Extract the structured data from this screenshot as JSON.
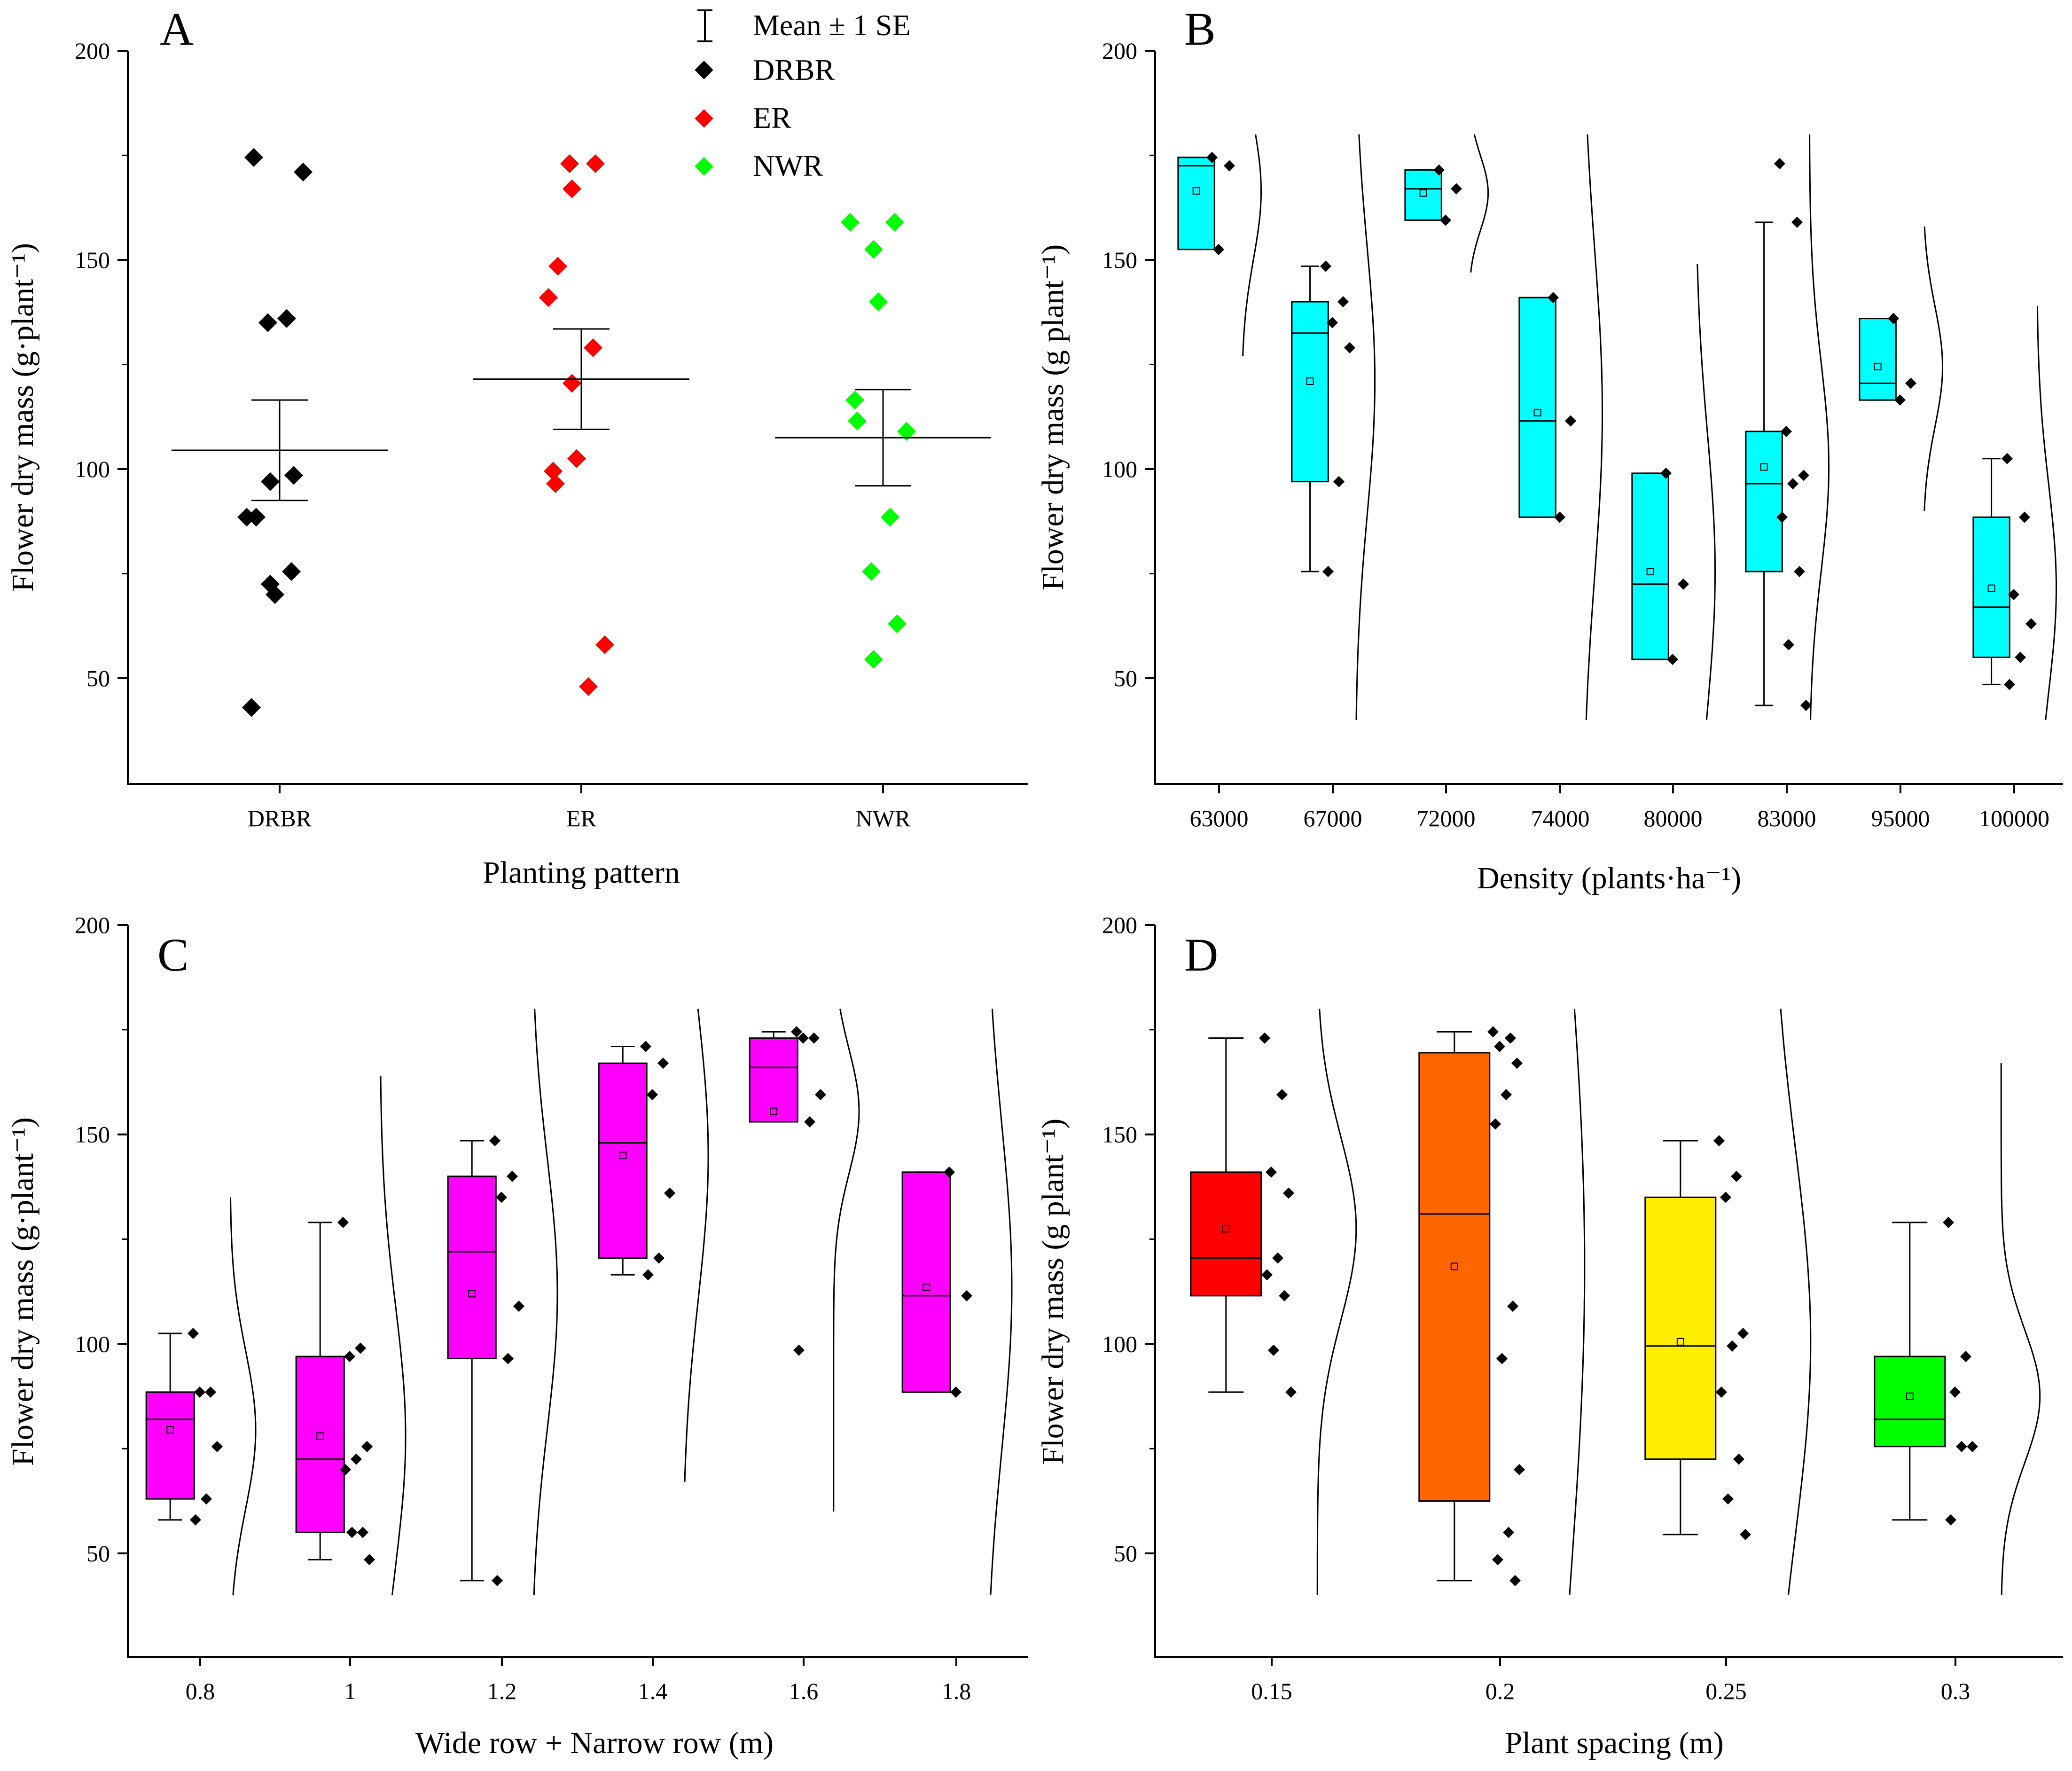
{
  "figure": {
    "description_panels": [
      "A",
      "B",
      "C",
      "D"
    ]
  },
  "legend": {
    "items": [
      {
        "label": "Mean ± 1 SE",
        "kind": "errorbar"
      },
      {
        "label": "DRBR",
        "kind": "marker",
        "color": "#000000"
      },
      {
        "label": "ER",
        "kind": "marker",
        "color": "#ff0000"
      },
      {
        "label": "NWR",
        "kind": "marker",
        "color": "#00ff00"
      }
    ]
  },
  "chart_data": [
    {
      "panel": "A",
      "type": "scatter",
      "title": "",
      "xlabel": "Planting pattern",
      "ylabel": "Flower dry mass (g·plant⁻¹)",
      "ylim": [
        25,
        200
      ],
      "yticks": [
        50,
        100,
        150,
        200
      ],
      "categories": [
        "DRBR",
        "ER",
        "NWR"
      ],
      "series": [
        {
          "name": "DRBR",
          "color": "#000000",
          "values": [
            43,
            70,
            72.5,
            75.5,
            88.5,
            88.5,
            97,
            98.5,
            135,
            136,
            171,
            174.5
          ],
          "mean": 104.5,
          "se": 12
        },
        {
          "name": "ER",
          "color": "#ff0000",
          "values": [
            48,
            58,
            96.5,
            99.5,
            102.5,
            120.5,
            129,
            141,
            148.5,
            167,
            173,
            173
          ],
          "mean": 121.5,
          "se": 12
        },
        {
          "name": "NWR",
          "color": "#00ff00",
          "values": [
            54.5,
            63,
            75.5,
            88.5,
            109,
            111.5,
            116.5,
            140,
            152.5,
            159,
            159
          ],
          "mean": 107.5,
          "se": 11.5
        }
      ]
    },
    {
      "panel": "B",
      "type": "box",
      "title": "",
      "xlabel": "Density (plants·ha⁻¹)",
      "ylabel": "Flower dry mass (g plant⁻¹)",
      "ylim": [
        25,
        200
      ],
      "yticks": [
        50,
        100,
        150,
        200
      ],
      "color": "#00ffff",
      "categories": [
        "63000",
        "67000",
        "72000",
        "74000",
        "80000",
        "83000",
        "95000",
        "100000"
      ],
      "boxes": [
        {
          "min": 152.5,
          "q1": 152.5,
          "median": 172.5,
          "q3": 174.5,
          "max": 174.5,
          "mean": 166.5,
          "points": [
            174.5,
            172.5,
            152.5
          ]
        },
        {
          "min": 75.5,
          "q1": 97,
          "median": 132.5,
          "q3": 140,
          "max": 148.5,
          "mean": 121,
          "points": [
            148.5,
            140,
            135,
            129,
            97,
            75.5
          ]
        },
        {
          "min": 159.5,
          "q1": 159.5,
          "median": 167,
          "q3": 171.5,
          "max": 171.5,
          "mean": 166,
          "points": [
            171.5,
            167,
            159.5
          ]
        },
        {
          "min": 88.5,
          "q1": 88.5,
          "median": 111.5,
          "q3": 141,
          "max": 141,
          "mean": 113.5,
          "points": [
            141,
            111.5,
            88.5
          ]
        },
        {
          "min": 54.5,
          "q1": 54.5,
          "median": 72.5,
          "q3": 99,
          "max": 99,
          "mean": 75.5,
          "points": [
            99,
            72.5,
            54.5
          ]
        },
        {
          "min": 43.5,
          "q1": 75.5,
          "median": 96.5,
          "q3": 109,
          "max": 159,
          "mean": 100.5,
          "points": [
            173,
            159,
            109,
            98.5,
            96.5,
            88.5,
            75.5,
            58,
            43.5
          ]
        },
        {
          "min": 116.5,
          "q1": 116.5,
          "median": 120.5,
          "q3": 136,
          "max": 136,
          "mean": 124.5,
          "points": [
            136,
            120.5,
            116.5
          ]
        },
        {
          "min": 48.5,
          "q1": 55,
          "median": 67,
          "q3": 88.5,
          "max": 102.5,
          "mean": 71.5,
          "points": [
            102.5,
            88.5,
            70,
            63,
            55,
            48.5
          ]
        }
      ],
      "curve_range": [
        [
          127,
          180
        ],
        [
          40,
          180
        ],
        [
          147,
          180
        ],
        [
          40,
          180
        ],
        [
          40,
          149
        ],
        [
          40,
          180
        ],
        [
          90,
          158
        ],
        [
          40,
          139
        ]
      ]
    },
    {
      "panel": "C",
      "type": "box",
      "title": "",
      "xlabel": "Wide row + Narrow row (m)",
      "ylabel": "Flower dry mass (g·plant⁻¹)",
      "ylim": [
        25,
        200
      ],
      "yticks": [
        50,
        100,
        150,
        200
      ],
      "color": "#ff00ff",
      "categories": [
        "0.8",
        "1",
        "1.2",
        "1.4",
        "1.6",
        "1.8"
      ],
      "boxes": [
        {
          "min": 58,
          "q1": 63,
          "median": 82,
          "q3": 88.5,
          "max": 102.5,
          "mean": 79.5,
          "points": [
            102.5,
            88.5,
            88.5,
            75.5,
            63,
            58
          ]
        },
        {
          "min": 48.5,
          "q1": 55,
          "median": 72.5,
          "q3": 97,
          "max": 129,
          "mean": 78,
          "points": [
            129,
            99,
            97,
            75.5,
            72.5,
            70,
            55,
            55,
            48.5
          ]
        },
        {
          "min": 43.5,
          "q1": 96.5,
          "median": 122,
          "q3": 140,
          "max": 148.5,
          "mean": 112,
          "points": [
            148.5,
            140,
            135,
            109,
            96.5,
            43.5
          ]
        },
        {
          "min": 116.5,
          "q1": 120.5,
          "median": 148,
          "q3": 167,
          "max": 171,
          "mean": 145,
          "points": [
            171,
            167,
            159.5,
            136,
            120.5,
            116.5
          ]
        },
        {
          "min": 153,
          "q1": 153,
          "median": 166,
          "q3": 173,
          "max": 174.5,
          "mean": 155.5,
          "points": [
            174.5,
            173,
            173,
            159.5,
            153,
            98.5
          ]
        },
        {
          "min": 88.5,
          "q1": 88.5,
          "median": 111.5,
          "q3": 141,
          "max": 141,
          "mean": 113.5,
          "points": [
            141,
            111.5,
            88.5
          ]
        }
      ],
      "curve_range": [
        [
          40,
          135
        ],
        [
          40,
          164
        ],
        [
          40,
          180
        ],
        [
          67,
          180
        ],
        [
          60,
          180
        ],
        [
          40,
          180
        ]
      ]
    },
    {
      "panel": "D",
      "type": "box",
      "title": "",
      "xlabel": "Plant spacing (m)",
      "ylabel": "Flower dry mass (g plant⁻¹)",
      "ylim": [
        25,
        200
      ],
      "yticks": [
        50,
        100,
        150,
        200
      ],
      "categories": [
        "0.15",
        "0.2",
        "0.25",
        "0.3"
      ],
      "boxes": [
        {
          "color": "#ff0000",
          "min": 88.5,
          "q1": 111.5,
          "median": 120.5,
          "q3": 141,
          "max": 173,
          "mean": 127.5,
          "points": [
            173,
            159.5,
            141,
            136,
            120.5,
            116.5,
            111.5,
            98.5,
            88.5
          ]
        },
        {
          "color": "#ff6600",
          "min": 43.5,
          "q1": 62.5,
          "median": 131,
          "q3": 169.5,
          "max": 174.5,
          "mean": 118.5,
          "points": [
            174.5,
            173,
            171,
            167,
            159.5,
            152.5,
            109,
            96.5,
            70,
            55,
            48.5,
            43.5
          ]
        },
        {
          "color": "#ffee00",
          "min": 54.5,
          "q1": 72.5,
          "median": 99.5,
          "q3": 135,
          "max": 148.5,
          "mean": 100.5,
          "points": [
            148.5,
            140,
            135,
            102.5,
            99.5,
            88.5,
            72.5,
            63,
            54.5
          ]
        },
        {
          "color": "#00ff00",
          "min": 58,
          "q1": 75.5,
          "median": 82,
          "q3": 97,
          "max": 129,
          "mean": 87.5,
          "points": [
            129,
            97,
            88.5,
            75.5,
            75.5,
            58
          ]
        }
      ],
      "curve_range": [
        [
          40,
          180
        ],
        [
          40,
          180
        ],
        [
          40,
          180
        ],
        [
          40,
          167
        ]
      ]
    }
  ]
}
